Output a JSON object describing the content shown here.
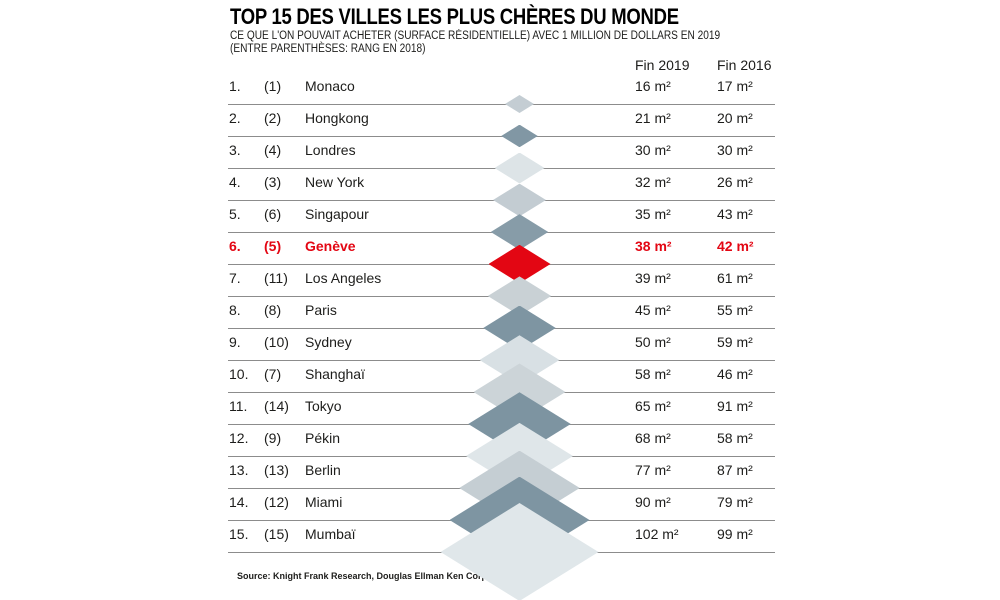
{
  "title": "TOP 15 DES VILLES LES PLUS CHÈRES DU MONDE",
  "subtitle_line1": "CE QUE L'ON POUVAIT ACHETER (SURFACE RÉSIDENTIELLE) AVEC 1 MILLION DE DOLLARS EN 2019",
  "subtitle_line2": "(ENTRE PARENTHÈSES: RANG EN 2018)",
  "columns": {
    "fin2019": "Fin 2019",
    "fin2016": "Fin 2016"
  },
  "source": "Source: Knight Frank Research, Douglas Ellman Ken Corporation.",
  "colors": {
    "highlight": "#e30613",
    "text": "#1d1d1b",
    "line": "#8c8c8c"
  },
  "chart_data": {
    "type": "table",
    "title": "TOP 15 DES VILLES LES PLUS CHÈRES DU MONDE",
    "unit": "m²",
    "value_columns": [
      "Fin 2019",
      "Fin 2016"
    ],
    "highlight_city": "Genève",
    "marker": "diamond scaled to Fin 2019 value",
    "rows": [
      {
        "rank": "1.",
        "rank_2018": "(1)",
        "city": "Monaco",
        "fin_2019": 16,
        "fin_2016": 17,
        "fin_2019_label": "16 m²",
        "fin_2016_label": "17 m²",
        "diamond_color": "#c4cdd3",
        "highlight": false
      },
      {
        "rank": "2.",
        "rank_2018": "(2)",
        "city": "Hongkong",
        "fin_2019": 21,
        "fin_2016": 20,
        "fin_2019_label": "21 m²",
        "fin_2016_label": "20 m²",
        "diamond_color": "#8197a4",
        "highlight": false
      },
      {
        "rank": "3.",
        "rank_2018": "(4)",
        "city": "Londres",
        "fin_2019": 30,
        "fin_2016": 30,
        "fin_2019_label": "30 m²",
        "fin_2016_label": "30 m²",
        "diamond_color": "#dde4e7",
        "highlight": false
      },
      {
        "rank": "4.",
        "rank_2018": "(3)",
        "city": "New York",
        "fin_2019": 32,
        "fin_2016": 26,
        "fin_2019_label": "32 m²",
        "fin_2016_label": "26 m²",
        "diamond_color": "#c3ccd2",
        "highlight": false
      },
      {
        "rank": "5.",
        "rank_2018": "(6)",
        "city": "Singapour",
        "fin_2019": 35,
        "fin_2016": 43,
        "fin_2019_label": "35 m²",
        "fin_2016_label": "43 m²",
        "diamond_color": "#879ca8",
        "highlight": false
      },
      {
        "rank": "6.",
        "rank_2018": "(5)",
        "city": "Genève",
        "fin_2019": 38,
        "fin_2016": 42,
        "fin_2019_label": "38 m²",
        "fin_2016_label": "42 m²",
        "diamond_color": "#e30613",
        "highlight": true
      },
      {
        "rank": "7.",
        "rank_2018": "(11)",
        "city": "Los Angeles",
        "fin_2019": 39,
        "fin_2016": 61,
        "fin_2019_label": "39 m²",
        "fin_2016_label": "61 m²",
        "diamond_color": "#c9d1d5",
        "highlight": false
      },
      {
        "rank": "8.",
        "rank_2018": "(8)",
        "city": "Paris",
        "fin_2019": 45,
        "fin_2016": 55,
        "fin_2019_label": "45 m²",
        "fin_2016_label": "55 m²",
        "diamond_color": "#7e95a2",
        "highlight": false
      },
      {
        "rank": "9.",
        "rank_2018": "(10)",
        "city": "Sydney",
        "fin_2019": 50,
        "fin_2016": 59,
        "fin_2019_label": "50 m²",
        "fin_2016_label": "59 m²",
        "diamond_color": "#d8e0e4",
        "highlight": false
      },
      {
        "rank": "10.",
        "rank_2018": "(7)",
        "city": "Shanghaï",
        "fin_2019": 58,
        "fin_2016": 46,
        "fin_2019_label": "58 m²",
        "fin_2016_label": "46 m²",
        "diamond_color": "#ccd4d8",
        "highlight": false
      },
      {
        "rank": "11.",
        "rank_2018": "(14)",
        "city": "Tokyo",
        "fin_2019": 65,
        "fin_2016": 91,
        "fin_2019_label": "65 m²",
        "fin_2016_label": "91 m²",
        "diamond_color": "#7d94a1",
        "highlight": false
      },
      {
        "rank": "12.",
        "rank_2018": "(9)",
        "city": "Pékin",
        "fin_2019": 68,
        "fin_2016": 58,
        "fin_2019_label": "68 m²",
        "fin_2016_label": "58 m²",
        "diamond_color": "#dfe6e9",
        "highlight": false
      },
      {
        "rank": "13.",
        "rank_2018": "(13)",
        "city": "Berlin",
        "fin_2019": 77,
        "fin_2016": 87,
        "fin_2019_label": "77 m²",
        "fin_2016_label": "87 m²",
        "diamond_color": "#c5ced3",
        "highlight": false
      },
      {
        "rank": "14.",
        "rank_2018": "(12)",
        "city": "Miami",
        "fin_2019": 90,
        "fin_2016": 79,
        "fin_2019_label": "90 m²",
        "fin_2016_label": "79 m²",
        "diamond_color": "#7e95a2",
        "highlight": false
      },
      {
        "rank": "15.",
        "rank_2018": "(15)",
        "city": "Mumbaï",
        "fin_2019": 102,
        "fin_2016": 99,
        "fin_2019_label": "102 m²",
        "fin_2016_label": "99 m²",
        "diamond_color": "#e0e7ea",
        "highlight": false
      }
    ]
  }
}
